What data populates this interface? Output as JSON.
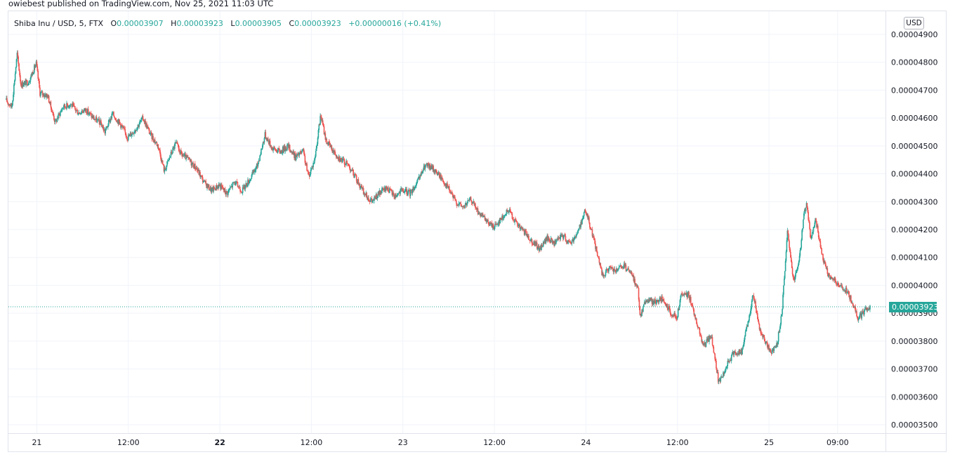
{
  "header": {
    "published_text": "owiebest published on TradingView.com, Nov 25, 2021 11:03 UTC"
  },
  "legend": {
    "symbol": "Shiba Inu / USD, 5, FTX",
    "open_key": "O",
    "open": "0.00003907",
    "high_key": "H",
    "high": "0.00003923",
    "low_key": "L",
    "low": "0.00003905",
    "close_key": "C",
    "close": "0.00003923",
    "change": "+0.00000016 (+0.41%)"
  },
  "price_axis": {
    "currency": "USD",
    "current_price_label": "0.00003923"
  },
  "colors": {
    "up": "#26a69a",
    "down": "#ef5350",
    "grid": "#f0f3fa",
    "axis_text": "#131722"
  },
  "chart_data": {
    "type": "candlestick",
    "interval": "5",
    "exchange": "FTX",
    "symbol": "Shiba Inu / USD",
    "y_ticks": [
      4.9e-05,
      4.8e-05,
      4.7e-05,
      4.6e-05,
      4.5e-05,
      4.4e-05,
      4.3e-05,
      4.2e-05,
      4.1e-05,
      4e-05,
      3.9e-05,
      3.8e-05,
      3.7e-05,
      3.6e-05,
      3.5e-05
    ],
    "y_tick_labels": [
      "0.00004900",
      "0.00004800",
      "0.00004700",
      "0.00004600",
      "0.00004500",
      "0.00004400",
      "0.00004300",
      "0.00004200",
      "0.00004100",
      "0.00004000",
      "0.00003900",
      "0.00003800",
      "0.00003700",
      "0.00003600",
      "0.00003500"
    ],
    "ylim": [
      3.47e-05,
      4.93e-05
    ],
    "x_ticks": [
      {
        "label": "21",
        "t": 24,
        "bold": false
      },
      {
        "label": "12:00",
        "t": 36,
        "bold": false
      },
      {
        "label": "22",
        "t": 48,
        "bold": true
      },
      {
        "label": "12:00",
        "t": 60,
        "bold": false
      },
      {
        "label": "23",
        "t": 72,
        "bold": false
      },
      {
        "label": "12:00",
        "t": 84,
        "bold": false
      },
      {
        "label": "24",
        "t": 96,
        "bold": false
      },
      {
        "label": "12:00",
        "t": 108,
        "bold": false
      },
      {
        "label": "25",
        "t": 120,
        "bold": false
      },
      {
        "label": "09:00",
        "t": 129,
        "bold": false
      }
    ],
    "xlim": [
      20,
      135
    ],
    "current_price": 3.923e-05,
    "price_path": [
      [
        20.0,
        4.665e-05
      ],
      [
        20.8,
        4.64e-05
      ],
      [
        21.5,
        4.83e-05
      ],
      [
        22.0,
        4.72e-05
      ],
      [
        23.0,
        4.73e-05
      ],
      [
        24.0,
        4.795e-05
      ],
      [
        24.5,
        4.69e-05
      ],
      [
        25.5,
        4.68e-05
      ],
      [
        26.5,
        4.585e-05
      ],
      [
        27.5,
        4.64e-05
      ],
      [
        28.5,
        4.65e-05
      ],
      [
        29.5,
        4.62e-05
      ],
      [
        30.5,
        4.63e-05
      ],
      [
        31.5,
        4.6e-05
      ],
      [
        32.5,
        4.58e-05
      ],
      [
        33.0,
        4.55e-05
      ],
      [
        34.0,
        4.615e-05
      ],
      [
        35.0,
        4.58e-05
      ],
      [
        36.0,
        4.53e-05
      ],
      [
        37.0,
        4.56e-05
      ],
      [
        38.0,
        4.6e-05
      ],
      [
        39.0,
        4.54e-05
      ],
      [
        40.0,
        4.5e-05
      ],
      [
        40.8,
        4.41e-05
      ],
      [
        41.5,
        4.46e-05
      ],
      [
        42.3,
        4.51e-05
      ],
      [
        43.0,
        4.47e-05
      ],
      [
        44.0,
        4.45e-05
      ],
      [
        45.0,
        4.42e-05
      ],
      [
        46.0,
        4.37e-05
      ],
      [
        47.0,
        4.34e-05
      ],
      [
        48.0,
        4.36e-05
      ],
      [
        49.0,
        4.33e-05
      ],
      [
        50.0,
        4.37e-05
      ],
      [
        51.0,
        4.34e-05
      ],
      [
        52.0,
        4.38e-05
      ],
      [
        53.0,
        4.43e-05
      ],
      [
        54.0,
        4.54e-05
      ],
      [
        55.0,
        4.49e-05
      ],
      [
        56.0,
        4.48e-05
      ],
      [
        57.0,
        4.5e-05
      ],
      [
        58.0,
        4.46e-05
      ],
      [
        59.0,
        4.48e-05
      ],
      [
        59.7,
        4.39e-05
      ],
      [
        60.5,
        4.45e-05
      ],
      [
        61.3,
        4.61e-05
      ],
      [
        62.0,
        4.52e-05
      ],
      [
        63.0,
        4.48e-05
      ],
      [
        64.0,
        4.45e-05
      ],
      [
        65.0,
        4.43e-05
      ],
      [
        66.0,
        4.38e-05
      ],
      [
        67.0,
        4.33e-05
      ],
      [
        68.0,
        4.3e-05
      ],
      [
        69.0,
        4.33e-05
      ],
      [
        70.0,
        4.35e-05
      ],
      [
        71.0,
        4.32e-05
      ],
      [
        72.0,
        4.34e-05
      ],
      [
        73.0,
        4.33e-05
      ],
      [
        74.0,
        4.37e-05
      ],
      [
        75.0,
        4.43e-05
      ],
      [
        76.0,
        4.42e-05
      ],
      [
        77.0,
        4.39e-05
      ],
      [
        78.0,
        4.35e-05
      ],
      [
        79.0,
        4.3e-05
      ],
      [
        80.0,
        4.28e-05
      ],
      [
        81.0,
        4.31e-05
      ],
      [
        82.0,
        4.26e-05
      ],
      [
        83.0,
        4.23e-05
      ],
      [
        84.0,
        4.21e-05
      ],
      [
        85.0,
        4.24e-05
      ],
      [
        86.0,
        4.27e-05
      ],
      [
        87.0,
        4.22e-05
      ],
      [
        88.0,
        4.19e-05
      ],
      [
        89.0,
        4.16e-05
      ],
      [
        90.0,
        4.13e-05
      ],
      [
        91.0,
        4.17e-05
      ],
      [
        92.0,
        4.15e-05
      ],
      [
        93.0,
        4.18e-05
      ],
      [
        94.0,
        4.15e-05
      ],
      [
        95.0,
        4.19e-05
      ],
      [
        96.0,
        4.27e-05
      ],
      [
        96.8,
        4.2e-05
      ],
      [
        97.5,
        4.12e-05
      ],
      [
        98.3,
        4.03e-05
      ],
      [
        99.0,
        4.06e-05
      ],
      [
        100.0,
        4.05e-05
      ],
      [
        101.0,
        4.07e-05
      ],
      [
        102.0,
        4.04e-05
      ],
      [
        102.9,
        3.99e-05
      ],
      [
        103.2,
        3.89e-05
      ],
      [
        104.0,
        3.95e-05
      ],
      [
        105.0,
        3.94e-05
      ],
      [
        106.0,
        3.95e-05
      ],
      [
        107.0,
        3.91e-05
      ],
      [
        108.0,
        3.88e-05
      ],
      [
        108.5,
        3.96e-05
      ],
      [
        109.5,
        3.97e-05
      ],
      [
        110.5,
        3.88e-05
      ],
      [
        111.5,
        3.78e-05
      ],
      [
        112.5,
        3.82e-05
      ],
      [
        113.5,
        3.65e-05
      ],
      [
        114.5,
        3.71e-05
      ],
      [
        115.5,
        3.76e-05
      ],
      [
        116.5,
        3.76e-05
      ],
      [
        117.5,
        3.89e-05
      ],
      [
        118.0,
        3.97e-05
      ],
      [
        118.8,
        3.85e-05
      ],
      [
        119.5,
        3.8e-05
      ],
      [
        120.5,
        3.76e-05
      ],
      [
        121.2,
        3.8e-05
      ],
      [
        121.8,
        3.91e-05
      ],
      [
        122.5,
        4.19e-05
      ],
      [
        123.3,
        4.02e-05
      ],
      [
        124.0,
        4.08e-05
      ],
      [
        124.7,
        4.26e-05
      ],
      [
        125.0,
        4.29e-05
      ],
      [
        125.6,
        4.16e-05
      ],
      [
        126.2,
        4.24e-05
      ],
      [
        127.0,
        4.11e-05
      ],
      [
        127.8,
        4.04e-05
      ],
      [
        128.6,
        4.02e-05
      ],
      [
        129.5,
        3.99e-05
      ],
      [
        130.3,
        3.98e-05
      ],
      [
        131.0,
        3.94e-05
      ],
      [
        131.8,
        3.88e-05
      ],
      [
        132.7,
        3.91e-05
      ],
      [
        133.3,
        3.92e-05
      ]
    ]
  }
}
